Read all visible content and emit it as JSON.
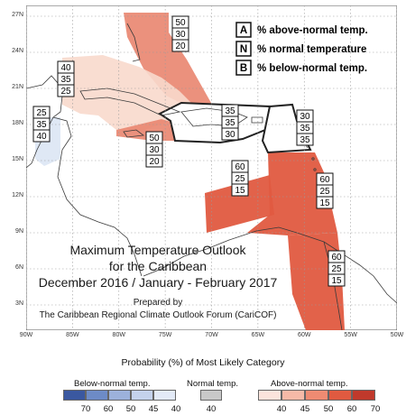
{
  "map": {
    "lat_ticks": [
      "27N",
      "24N",
      "21N",
      "18N",
      "15N",
      "12N",
      "9N",
      "6N",
      "3N"
    ],
    "lon_ticks": [
      "90W",
      "85W",
      "80W",
      "75W",
      "70W",
      "65W",
      "60W",
      "55W",
      "50W"
    ],
    "title_lines": [
      "Maximum Temperature Outlook",
      "for the Caribbean",
      "December 2016 / January - February 2017"
    ],
    "prepared_lines": [
      "Prepared by",
      "The Caribbean Regional Climate Outlook Forum (CariCOF)"
    ],
    "key": {
      "rows": [
        {
          "letter": "A",
          "text": "% above-normal temp."
        },
        {
          "letter": "N",
          "text": "% normal temperature"
        },
        {
          "letter": "B",
          "text": "% below-normal temp."
        }
      ]
    },
    "probability_boxes": [
      {
        "region": "bahamas",
        "values": [
          "50",
          "30",
          "20"
        ]
      },
      {
        "region": "cuba",
        "values": [
          "40",
          "35",
          "25"
        ]
      },
      {
        "region": "yucatan-belize",
        "values": [
          "25",
          "35",
          "40"
        ]
      },
      {
        "region": "jamaica-cayman",
        "values": [
          "50",
          "30",
          "20"
        ]
      },
      {
        "region": "greater-antilles-east",
        "values": [
          "35",
          "35",
          "30"
        ]
      },
      {
        "region": "eastern-caribbean",
        "values": [
          "30",
          "35",
          "35"
        ]
      },
      {
        "region": "abc-islands",
        "values": [
          "60",
          "25",
          "15"
        ]
      },
      {
        "region": "southern-lesser-antilles",
        "values": [
          "60",
          "25",
          "15"
        ]
      },
      {
        "region": "guianas",
        "values": [
          "60",
          "25",
          "15"
        ]
      }
    ],
    "region_colors": {
      "above_60": "#e05a40",
      "above_50": "#e9856f",
      "above_40": "#f8d9cc",
      "below_40": "#dce5f4",
      "neutral": "#ffffff"
    },
    "land_color": "#f4f4f4",
    "grid": true
  },
  "legend": {
    "title": "Probability (%) of Most Likely Category",
    "below": {
      "label": "Below-normal temp.",
      "values": [
        "70",
        "60",
        "50",
        "45",
        "40"
      ],
      "colors": [
        "#3a58a0",
        "#6d8bc6",
        "#9cb1db",
        "#c4d2ec",
        "#e3eaf7"
      ]
    },
    "normal": {
      "label": "Normal temp.",
      "values": [
        "40"
      ],
      "colors": [
        "#c8c8c8"
      ]
    },
    "above": {
      "label": "Above-normal temp.",
      "values": [
        "40",
        "45",
        "50",
        "60",
        "70"
      ],
      "colors": [
        "#fbe4dc",
        "#f6b9a7",
        "#ee8b72",
        "#e05a40",
        "#c0392b"
      ]
    }
  }
}
